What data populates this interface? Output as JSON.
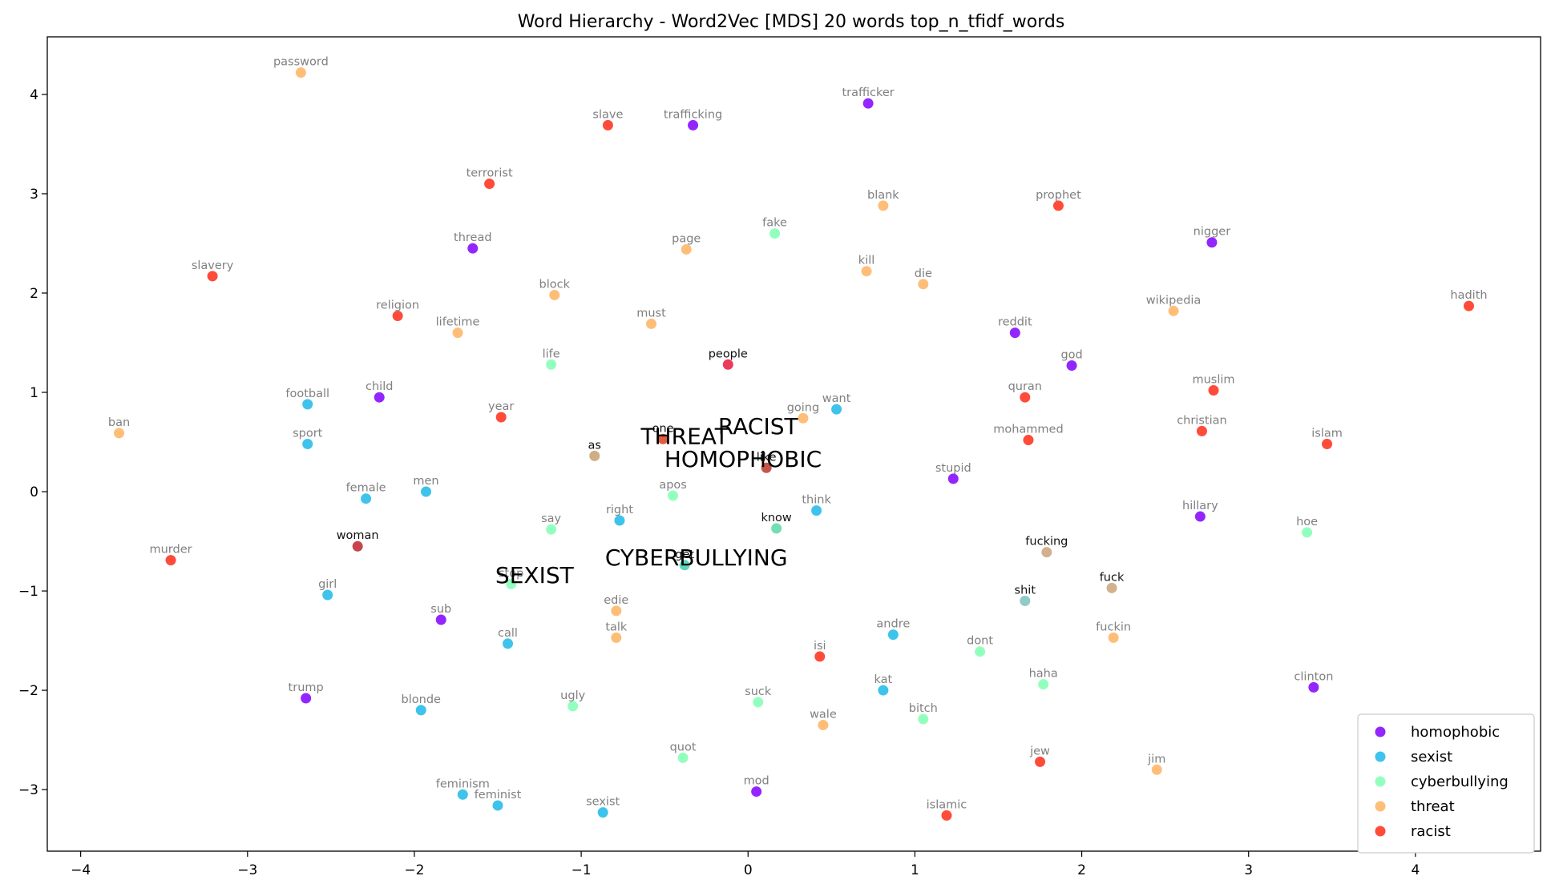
{
  "chart_data": {
    "type": "scatter",
    "title": "Word Hierarchy - Word2Vec [MDS] 20 words top_n_tfidf_words",
    "xlabel": "",
    "ylabel": "",
    "xlim": [
      -4.2,
      4.75
    ],
    "ylim": [
      -3.62,
      4.58
    ],
    "x_ticks": [
      -4,
      -3,
      -2,
      -1,
      0,
      1,
      2,
      3,
      4
    ],
    "y_ticks": [
      -3,
      -2,
      -1,
      0,
      1,
      2,
      3,
      4
    ],
    "x_tick_labels": [
      "−4",
      "−3",
      "−2",
      "−1",
      "0",
      "1",
      "2",
      "3",
      "4"
    ],
    "y_tick_labels": [
      "−3",
      "−2",
      "−1",
      "0",
      "1",
      "2",
      "3",
      "4"
    ],
    "grid": false,
    "legend_position": "bottom-right",
    "series": [
      {
        "name": "homophobic",
        "color": "#8000ff",
        "points": [
          {
            "label": "trafficker",
            "x": 0.72,
            "y": 3.91
          },
          {
            "label": "trafficking",
            "x": -0.33,
            "y": 3.69
          },
          {
            "label": "thread",
            "x": -1.65,
            "y": 2.45
          },
          {
            "label": "nigger",
            "x": 2.78,
            "y": 2.51
          },
          {
            "label": "reddit",
            "x": 1.6,
            "y": 1.6
          },
          {
            "label": "god",
            "x": 1.94,
            "y": 1.27
          },
          {
            "label": "child",
            "x": -2.21,
            "y": 0.95
          },
          {
            "label": "stupid",
            "x": 1.23,
            "y": 0.13
          },
          {
            "label": "hillary",
            "x": 2.71,
            "y": -0.25
          },
          {
            "label": "sub",
            "x": -1.84,
            "y": -1.29
          },
          {
            "label": "trump",
            "x": -2.65,
            "y": -2.08
          },
          {
            "label": "clinton",
            "x": 3.39,
            "y": -1.97
          },
          {
            "label": "mod",
            "x": 0.05,
            "y": -3.02
          }
        ]
      },
      {
        "name": "sexist",
        "color": "#1cb9e9",
        "points": [
          {
            "label": "football",
            "x": -2.64,
            "y": 0.88
          },
          {
            "label": "sport",
            "x": -2.64,
            "y": 0.48
          },
          {
            "label": "want",
            "x": 0.53,
            "y": 0.83
          },
          {
            "label": "female",
            "x": -2.29,
            "y": -0.07
          },
          {
            "label": "men",
            "x": -1.93,
            "y": 0.0
          },
          {
            "label": "right",
            "x": -0.77,
            "y": -0.29
          },
          {
            "label": "think",
            "x": 0.41,
            "y": -0.19
          },
          {
            "label": "girl",
            "x": -2.52,
            "y": -1.04
          },
          {
            "label": "call",
            "x": -1.44,
            "y": -1.53
          },
          {
            "label": "andre",
            "x": 0.87,
            "y": -1.44
          },
          {
            "label": "blonde",
            "x": -1.96,
            "y": -2.2
          },
          {
            "label": "kat",
            "x": 0.81,
            "y": -2.0
          },
          {
            "label": "feminism",
            "x": -1.71,
            "y": -3.05
          },
          {
            "label": "feminist",
            "x": -1.5,
            "y": -3.16
          },
          {
            "label": "sexist",
            "x": -0.87,
            "y": -3.23
          }
        ]
      },
      {
        "name": "cyberbullying",
        "color": "#80ffb4",
        "points": [
          {
            "label": "fake",
            "x": 0.16,
            "y": 2.6
          },
          {
            "label": "life",
            "x": -1.18,
            "y": 1.28
          },
          {
            "label": "apos",
            "x": -0.45,
            "y": -0.04
          },
          {
            "label": "say",
            "x": -1.18,
            "y": -0.38
          },
          {
            "label": "stop",
            "x": -1.42,
            "y": -0.93
          },
          {
            "label": "hoe",
            "x": 3.35,
            "y": -0.41
          },
          {
            "label": "dont",
            "x": 1.39,
            "y": -1.61
          },
          {
            "label": "haha",
            "x": 1.77,
            "y": -1.94
          },
          {
            "label": "ugly",
            "x": -1.05,
            "y": -2.16
          },
          {
            "label": "suck",
            "x": 0.06,
            "y": -2.12
          },
          {
            "label": "bitch",
            "x": 1.05,
            "y": -2.29
          },
          {
            "label": "quot",
            "x": -0.39,
            "y": -2.68
          }
        ]
      },
      {
        "name": "threat",
        "color": "#ffb360",
        "points": [
          {
            "label": "password",
            "x": -2.68,
            "y": 4.22
          },
          {
            "label": "blank",
            "x": 0.81,
            "y": 2.88
          },
          {
            "label": "page",
            "x": -0.37,
            "y": 2.44
          },
          {
            "label": "kill",
            "x": 0.71,
            "y": 2.22
          },
          {
            "label": "die",
            "x": 1.05,
            "y": 2.09
          },
          {
            "label": "block",
            "x": -1.16,
            "y": 1.98
          },
          {
            "label": "must",
            "x": -0.58,
            "y": 1.69
          },
          {
            "label": "lifetime",
            "x": -1.74,
            "y": 1.6
          },
          {
            "label": "wikipedia",
            "x": 2.55,
            "y": 1.82
          },
          {
            "label": "ban",
            "x": -3.77,
            "y": 0.59
          },
          {
            "label": "going",
            "x": 0.33,
            "y": 0.74
          },
          {
            "label": "edie",
            "x": -0.79,
            "y": -1.2
          },
          {
            "label": "talk",
            "x": -0.79,
            "y": -1.47
          },
          {
            "label": "fuckin",
            "x": 2.19,
            "y": -1.47
          },
          {
            "label": "wale",
            "x": 0.45,
            "y": -2.35
          },
          {
            "label": "jim",
            "x": 2.45,
            "y": -2.8
          }
        ]
      },
      {
        "name": "racist",
        "color": "#ff2c16",
        "points": [
          {
            "label": "slave",
            "x": -0.84,
            "y": 3.69
          },
          {
            "label": "terrorist",
            "x": -1.55,
            "y": 3.1
          },
          {
            "label": "prophet",
            "x": 1.86,
            "y": 2.88
          },
          {
            "label": "slavery",
            "x": -3.21,
            "y": 2.17
          },
          {
            "label": "religion",
            "x": -2.1,
            "y": 1.77
          },
          {
            "label": "hadith",
            "x": 4.32,
            "y": 1.87
          },
          {
            "label": "year",
            "x": -1.48,
            "y": 0.75
          },
          {
            "label": "quran",
            "x": 1.66,
            "y": 0.95
          },
          {
            "label": "muslim",
            "x": 2.79,
            "y": 1.02
          },
          {
            "label": "christian",
            "x": 2.72,
            "y": 0.61
          },
          {
            "label": "mohammed",
            "x": 1.68,
            "y": 0.52
          },
          {
            "label": "islam",
            "x": 3.47,
            "y": 0.48
          },
          {
            "label": "murder",
            "x": -3.46,
            "y": -0.69
          },
          {
            "label": "isi",
            "x": 0.43,
            "y": -1.66
          },
          {
            "label": "jew",
            "x": 1.75,
            "y": -2.72
          },
          {
            "label": "islamic",
            "x": 1.19,
            "y": -3.26
          }
        ]
      }
    ],
    "shared_points": [
      {
        "label": "people",
        "x": -0.12,
        "y": 1.28,
        "color": "#e8173e"
      },
      {
        "label": "one",
        "x": -0.51,
        "y": 0.53,
        "color": "#d9411e"
      },
      {
        "label": "as",
        "x": -0.92,
        "y": 0.36,
        "color": "#c8a070"
      },
      {
        "label": "like",
        "x": 0.11,
        "y": 0.24,
        "color": "#b8382a"
      },
      {
        "label": "woman",
        "x": -2.34,
        "y": -0.55,
        "color": "#c0252f"
      },
      {
        "label": "know",
        "x": 0.17,
        "y": -0.37,
        "color": "#5ad7a6"
      },
      {
        "label": "get",
        "x": -0.38,
        "y": -0.74,
        "color": "#45cfb0"
      },
      {
        "label": "fucking",
        "x": 1.79,
        "y": -0.61,
        "color": "#cba27a"
      },
      {
        "label": "fuck",
        "x": 2.18,
        "y": -0.97,
        "color": "#cba27a"
      },
      {
        "label": "shit",
        "x": 1.66,
        "y": -1.1,
        "color": "#7fc0c0"
      }
    ],
    "class_labels": [
      {
        "label": "RACIST",
        "x": 0.06,
        "y": 0.66
      },
      {
        "label": "THREAT",
        "x": -0.38,
        "y": 0.56
      },
      {
        "label": "HOMOPHOBIC",
        "x": -0.03,
        "y": 0.33
      },
      {
        "label": "CYBERBULLYING",
        "x": -0.31,
        "y": -0.66
      },
      {
        "label": "SEXIST",
        "x": -1.28,
        "y": -0.84
      }
    ]
  }
}
